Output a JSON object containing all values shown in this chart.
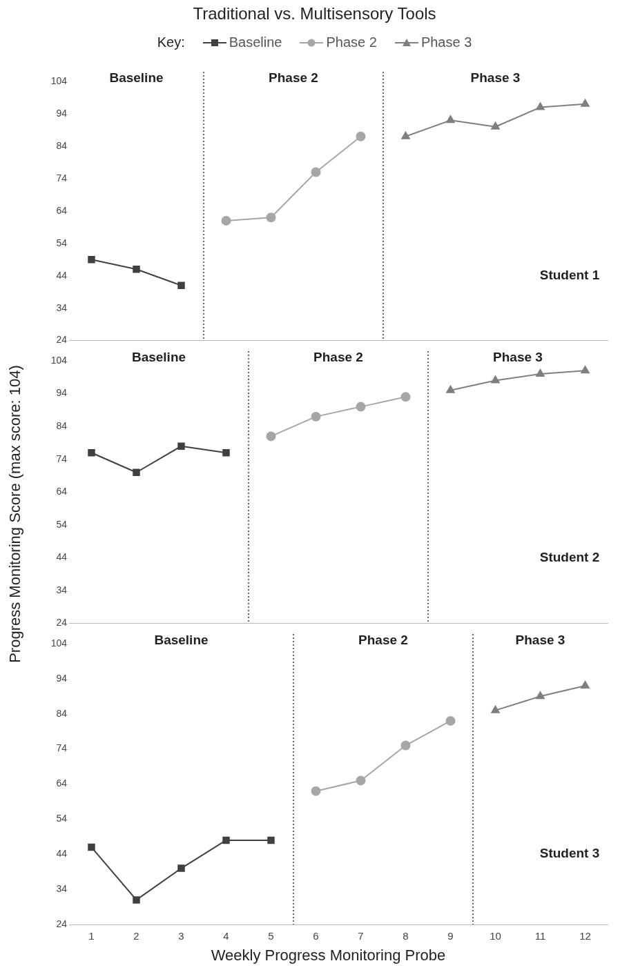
{
  "chart_data": [
    {
      "type": "line",
      "title": "Traditional vs. Multisensory Tools",
      "legend": "top",
      "legend_title": "Key:",
      "xlim": [
        0.5,
        12.5
      ],
      "xticks": [
        1,
        2,
        3,
        4,
        5,
        6,
        7,
        8,
        9,
        10,
        11,
        12
      ],
      "ylim": [
        24,
        104
      ],
      "yticks": [
        24,
        34,
        44,
        54,
        64,
        74,
        84,
        94,
        104
      ],
      "tick_labels": "y",
      "series": [
        {
          "name": "Baseline",
          "color": "#404040",
          "marker": "square",
          "x": [
            1,
            2,
            3
          ],
          "values": [
            49,
            46,
            41
          ]
        },
        {
          "name": "Phase 2",
          "color": "#a6a6a6",
          "marker": "circle",
          "x": [
            4,
            5,
            6,
            7
          ],
          "values": [
            61,
            62,
            76,
            87
          ]
        },
        {
          "name": "Phase 3",
          "color": "#7f7f7f",
          "marker": "triangle",
          "x": [
            8,
            9,
            10,
            11,
            12
          ],
          "values": [
            87,
            92,
            90,
            96,
            97
          ]
        }
      ],
      "ref_lines": [
        {
          "axis": "x",
          "value": 3.5,
          "line_style": "dotted"
        },
        {
          "axis": "x",
          "value": 7.5,
          "line_style": "dotted"
        }
      ],
      "annotations": [
        "Baseline",
        "Phase 2",
        "Phase 3",
        "Student 1"
      ]
    },
    {
      "type": "line",
      "ylabel": "Progress Monitoring Score (max score: 104)",
      "xlim": [
        0.5,
        12.5
      ],
      "xticks": [
        1,
        2,
        3,
        4,
        5,
        6,
        7,
        8,
        9,
        10,
        11,
        12
      ],
      "ylim": [
        24,
        104
      ],
      "yticks": [
        24,
        34,
        44,
        54,
        64,
        74,
        84,
        94,
        104
      ],
      "tick_labels": "y",
      "series": [
        {
          "color": "#404040",
          "marker": "square",
          "x": [
            1,
            2,
            3,
            4
          ],
          "values": [
            76,
            70,
            78,
            76
          ]
        },
        {
          "color": "#a6a6a6",
          "marker": "circle",
          "x": [
            5,
            6,
            7,
            8
          ],
          "values": [
            81,
            87,
            90,
            93
          ]
        },
        {
          "color": "#7f7f7f",
          "marker": "triangle",
          "x": [
            9,
            10,
            11,
            12
          ],
          "values": [
            95,
            98,
            100,
            101
          ]
        }
      ],
      "ref_lines": [
        {
          "axis": "x",
          "value": 4.5,
          "line_style": "dotted"
        },
        {
          "axis": "x",
          "value": 8.5,
          "line_style": "dotted"
        }
      ],
      "annotations": [
        "Baseline",
        "Phase 2",
        "Phase 3",
        "Student 2"
      ]
    },
    {
      "type": "line",
      "xlabel": "Weekly Progress Monitoring Probe",
      "xlim": [
        0.5,
        12.5
      ],
      "xticks": [
        1,
        2,
        3,
        4,
        5,
        6,
        7,
        8,
        9,
        10,
        11,
        12
      ],
      "ylim": [
        24,
        104
      ],
      "yticks": [
        24,
        34,
        44,
        54,
        64,
        74,
        84,
        94,
        104
      ],
      "series": [
        {
          "color": "#404040",
          "marker": "square",
          "x": [
            1,
            2,
            3,
            4,
            5
          ],
          "values": [
            46,
            31,
            40,
            48,
            48
          ]
        },
        {
          "color": "#a6a6a6",
          "marker": "circle",
          "x": [
            6,
            7,
            8,
            9
          ],
          "values": [
            62,
            65,
            75,
            82
          ]
        },
        {
          "color": "#7f7f7f",
          "marker": "triangle",
          "x": [
            10,
            11,
            12
          ],
          "values": [
            85,
            89,
            92
          ]
        }
      ],
      "ref_lines": [
        {
          "axis": "x",
          "value": 5.5,
          "line_style": "dotted"
        },
        {
          "axis": "x",
          "value": 9.5,
          "line_style": "dotted"
        }
      ],
      "annotations": [
        "Baseline",
        "Phase 2",
        "Phase 3",
        "Student 3"
      ]
    }
  ]
}
